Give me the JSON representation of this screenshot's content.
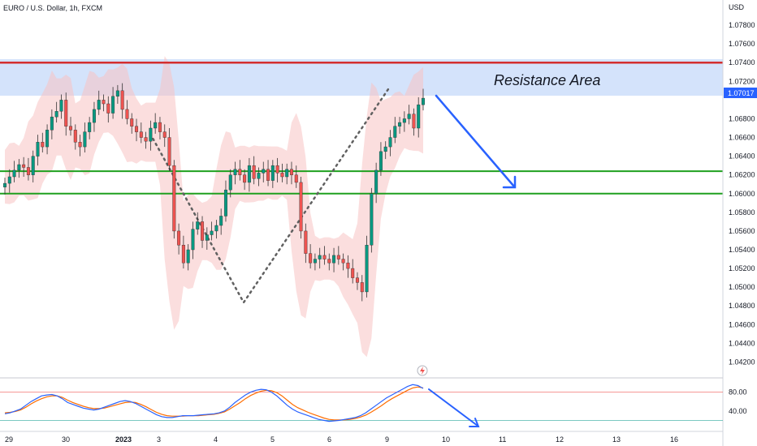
{
  "symbol": "EURO / U.S. Dollar, 1h, FXCM",
  "currency": "USD",
  "colors": {
    "up": "#26a69a",
    "upFill": "#089981",
    "down": "#ef5350",
    "resistance": "#d32f2f",
    "support": "#1fa01f",
    "zone": "#cfe0fb",
    "arrow": "#2962ff",
    "envelope": "#f8c3c3",
    "guide": "#616161",
    "stochK": "#2962ff",
    "stochD": "#ff6d00"
  },
  "chart_data": [
    {
      "type": "candlestick",
      "title": "EURO / U.S. Dollar, 1h, FXCM",
      "ylabel": "USD",
      "ylim": [
        1.041,
        1.08
      ],
      "yticks": [
        "1.07800",
        "1.07600",
        "1.07400",
        "1.07200",
        "1.06800",
        "1.06600",
        "1.06400",
        "1.06200",
        "1.06000",
        "1.05800",
        "1.05600",
        "1.05400",
        "1.05200",
        "1.05000",
        "1.04800",
        "1.04600",
        "1.04400",
        "1.04200"
      ],
      "x_labels": [
        "29",
        "30",
        "2023",
        "3",
        "4",
        "5",
        "6",
        "9",
        "10",
        "11",
        "12",
        "13",
        "16"
      ],
      "last_price": "1.07017",
      "levels": {
        "resistance_line": 1.074,
        "resistance_area": [
          1.07,
          1.0735
        ],
        "support_upper": 1.0624,
        "support_lower": 1.06
      },
      "annotations": {
        "resistance_area": "Resistance Area"
      },
      "closes": [
        1.0611,
        1.0618,
        1.0625,
        1.0631,
        1.0628,
        1.062,
        1.064,
        1.0655,
        1.065,
        1.0668,
        1.0682,
        1.0688,
        1.07,
        1.0672,
        1.0668,
        1.0655,
        1.065,
        1.0666,
        1.0676,
        1.069,
        1.07,
        1.0696,
        1.0686,
        1.0704,
        1.071,
        1.069,
        1.068,
        1.0672,
        1.0666,
        1.066,
        1.0656,
        1.067,
        1.0676,
        1.0666,
        1.066,
        1.063,
        1.056,
        1.0545,
        1.0526,
        1.054,
        1.0562,
        1.057,
        1.055,
        1.0556,
        1.056,
        1.0566,
        1.0576,
        1.0604,
        1.062,
        1.0626,
        1.062,
        1.0612,
        1.063,
        1.0616,
        1.0622,
        1.0626,
        1.0614,
        1.063,
        1.0622,
        1.0618,
        1.0626,
        1.062,
        1.0612,
        1.056,
        1.0536,
        1.0526,
        1.053,
        1.0534,
        1.053,
        1.0526,
        1.0534,
        1.053,
        1.0526,
        1.052,
        1.051,
        1.0505,
        1.0495,
        1.0545,
        1.06,
        1.0625,
        1.0645,
        1.065,
        1.066,
        1.0672,
        1.0676,
        1.068,
        1.0685,
        1.067,
        1.0695,
        1.0702
      ],
      "stochastic": {
        "ylim": [
          0,
          100
        ],
        "yticks": [
          "80.00",
          "40.00"
        ],
        "bands": [
          80,
          20
        ],
        "k": [
          34,
          36,
          40,
          44,
          52,
          60,
          66,
          72,
          74,
          75,
          72,
          66,
          58,
          54,
          50,
          46,
          44,
          42,
          44,
          48,
          52,
          56,
          60,
          62,
          60,
          56,
          50,
          44,
          38,
          32,
          28,
          26,
          26,
          28,
          30,
          30,
          30,
          31,
          32,
          33,
          34,
          36,
          40,
          48,
          58,
          66,
          74,
          80,
          84,
          86,
          85,
          80,
          72,
          62,
          52,
          44,
          38,
          34,
          30,
          26,
          22,
          20,
          18,
          19,
          20,
          22,
          24,
          26,
          30,
          36,
          44,
          52,
          60,
          68,
          74,
          80,
          86,
          92,
          96,
          94,
          88
        ],
        "d": [
          36,
          37,
          39,
          42,
          48,
          55,
          61,
          66,
          70,
          72,
          72,
          69,
          63,
          58,
          54,
          50,
          47,
          45,
          45,
          46,
          49,
          52,
          55,
          58,
          59,
          58,
          54,
          49,
          43,
          37,
          33,
          30,
          29,
          29,
          29,
          30,
          30,
          30,
          31,
          32,
          33,
          35,
          38,
          44,
          51,
          58,
          66,
          73,
          78,
          82,
          84,
          83,
          79,
          72,
          63,
          54,
          47,
          42,
          37,
          33,
          29,
          25,
          22,
          21,
          21,
          21,
          22,
          24,
          27,
          31,
          37,
          44,
          51,
          59,
          66,
          72,
          78,
          84,
          89,
          91,
          89
        ]
      }
    }
  ]
}
